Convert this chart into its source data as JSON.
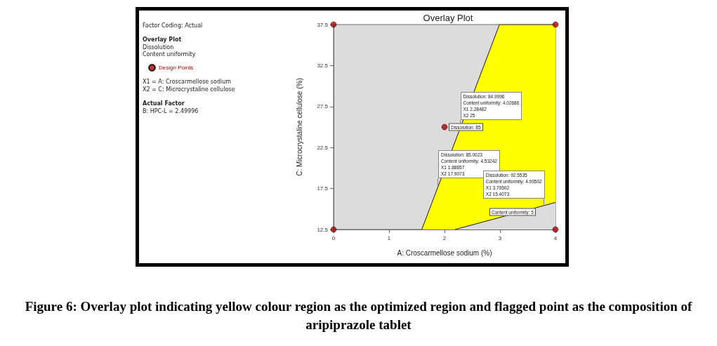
{
  "chart_data": {
    "type": "scatter",
    "title": "Overlay Plot",
    "xlabel": "A: Croscarmellose sodium (%)",
    "ylabel": "C: Microcrystaline cellulose (%)",
    "xlim": [
      0,
      4
    ],
    "xticks": [
      0,
      1,
      2,
      3,
      4
    ],
    "ylim": [
      12.5,
      37.5
    ],
    "yticks": [
      12.5,
      17.5,
      22.5,
      27.5,
      32.5,
      37.5
    ],
    "grid": false,
    "legend": "left",
    "series": [
      {
        "type": "area",
        "color": "#ffff00",
        "x": [
          1.59,
          2.99,
          4
        ],
        "values": [
          12.5,
          37.5,
          37.5
        ],
        "marker": "none"
      },
      {
        "type": "area",
        "color": "#dcdcdc",
        "x": [
          2.19,
          4
        ],
        "values": [
          12.5,
          15.8
        ],
        "marker": "none"
      },
      {
        "name": "Design Points",
        "color": "#b00000",
        "x": [
          0,
          0,
          4,
          4,
          2
        ],
        "values": [
          12.5,
          37.5,
          12.5,
          37.5,
          25
        ],
        "marker": "circle"
      }
    ],
    "annotations": [
      "Factor Coding: Actual",
      "Overlay Plot",
      "Dissolution",
      "Content uniformity",
      "X1 = A: Croscarmellose sodium",
      "X2 = C: Microcrystaline cellulose",
      "Actual Factor",
      "B: HPC-L = 2.49996",
      {
        "text": "Dissolution: 84.9996\nContent uniformity: 4.02686\nX1 2.28482\nX2 25",
        "x": 2.28482,
        "y": 25
      },
      {
        "text": "Dissolution: 85.0023\nContent uniformity: 4.53242\nX1 1.88657\nX2 17.9073",
        "x": 1.88657,
        "y": 17.9073
      },
      {
        "text": "Dissolution: 92.5535\nContent uniformity: 4.99502\nX1 3.79502\nX2 15.4073",
        "x": 3.79502,
        "y": 15.4073
      },
      {
        "text": "Dissolution: 85",
        "x": 2.29,
        "y": 25
      },
      {
        "text": "Content uniformity: 5",
        "x": 3.1,
        "y": 14.6
      },
      "Figure 6: Overlay plot indicating yellow colour region as the optimized region and flagged point as the composition of aripiprazole tablet"
    ]
  }
}
